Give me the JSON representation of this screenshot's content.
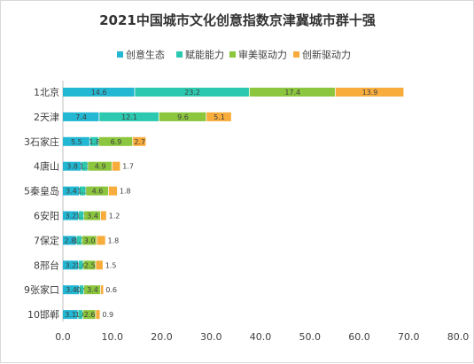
{
  "chart_data": {
    "type": "bar",
    "orientation": "horizontal",
    "stacked": true,
    "title": "2021中国城市文化创意指数京津冀城市群十强",
    "categories": [
      "1北京",
      "2天津",
      "3石家庄",
      "4唐山",
      "5秦皇岛",
      "6安阳",
      "7保定",
      "8邢台",
      "9张家口",
      "10邯郸"
    ],
    "series": [
      {
        "name": "创意生态",
        "color": "#22b7d3",
        "values": [
          14.6,
          7.4,
          5.5,
          3.8,
          3.4,
          3.2,
          2.8,
          3.2,
          3.4,
          3.1
        ]
      },
      {
        "name": "赋能能力",
        "color": "#2cc9b0",
        "values": [
          23.2,
          12.1,
          1.8,
          1.3,
          1.3,
          1.1,
          1.1,
          1.0,
          0.9,
          1.0
        ]
      },
      {
        "name": "审美驱动力",
        "color": "#8cc63e",
        "values": [
          17.4,
          9.6,
          6.9,
          4.9,
          4.6,
          3.4,
          3.0,
          2.5,
          3.4,
          2.6
        ]
      },
      {
        "name": "创新驱动力",
        "color": "#f8ac3b",
        "values": [
          13.9,
          5.1,
          2.7,
          1.7,
          1.8,
          1.2,
          1.8,
          1.5,
          0.6,
          0.9
        ]
      }
    ],
    "xlim": [
      0,
      80
    ],
    "xticks": [
      0,
      10,
      20,
      30,
      40,
      50,
      60,
      70,
      80
    ],
    "xtick_labels": [
      "0.0",
      "10.0",
      "20.0",
      "30.0",
      "40.0",
      "50.0",
      "60.0",
      "70.0",
      "80.0"
    ],
    "legend_position": "top",
    "grid": false
  }
}
